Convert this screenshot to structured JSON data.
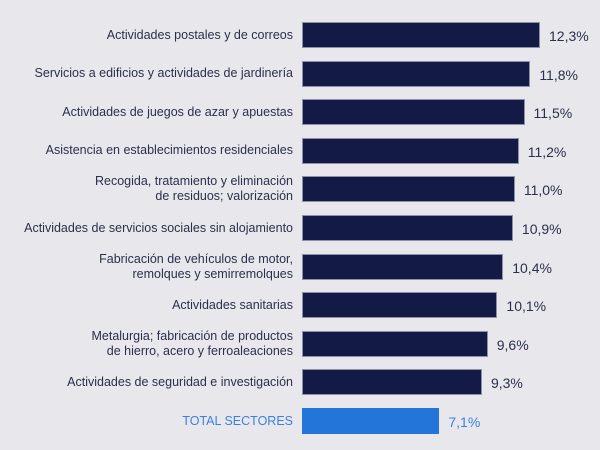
{
  "chart_data": {
    "type": "bar",
    "orientation": "horizontal",
    "title": "",
    "xlabel": "",
    "ylabel": "",
    "xlim": [
      0,
      12.3
    ],
    "grid": false,
    "categories": [
      "Actividades postales y de correos",
      "Servicios a edificios y actividades de jardinería",
      "Actividades de juegos de azar y apuestas",
      "Asistencia en establecimientos residenciales",
      "Recogida, tratamiento y eliminación\nde residuos; valorización",
      "Actividades de servicios sociales sin alojamiento",
      "Fabricación de vehículos de motor,\nremolques y semirremolques",
      "Actividades sanitarias",
      "Metalurgia; fabricación de productos\nde hierro, acero y ferroaleaciones",
      "Actividades de seguridad e investigación",
      "TOTAL SECTORES"
    ],
    "values": [
      12.3,
      11.8,
      11.5,
      11.2,
      11.0,
      10.9,
      10.4,
      10.1,
      9.6,
      9.3,
      7.1
    ],
    "value_labels": [
      "12,3%",
      "11,8%",
      "11,5%",
      "11,2%",
      "11,0%",
      "10,9%",
      "10,4%",
      "10,1%",
      "9,6%",
      "9,3%",
      "7,1%"
    ],
    "highlight_index": 10,
    "colors": {
      "bar": "#121a45",
      "highlight": "#2375da",
      "highlight_text": "#3d7fe0",
      "text": "#2b2f4a",
      "background": "#e8e8ec"
    }
  }
}
